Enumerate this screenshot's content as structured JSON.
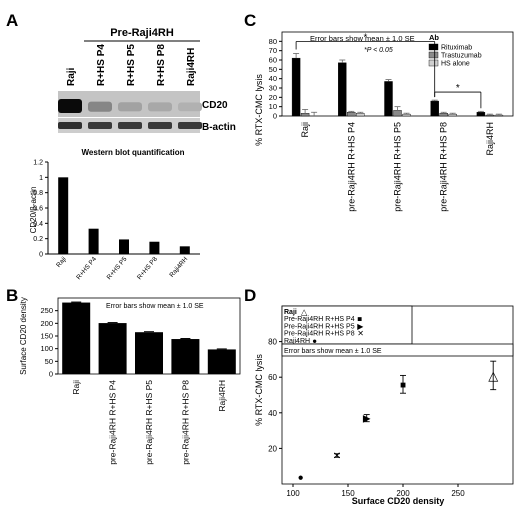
{
  "chart_data": [
    {
      "panel": "A",
      "type": "table",
      "header": "Pre-Raji4RH",
      "lanes": [
        "Raji",
        "R+HS P4",
        "R+HS P5",
        "R+HS P8",
        "Raji4RH"
      ],
      "rows": [
        "CD20",
        "B-actin"
      ],
      "band_intensity": {
        "CD20": [
          1.0,
          0.35,
          0.2,
          0.17,
          0.12
        ],
        "B-actin": [
          0.85,
          0.8,
          0.8,
          0.8,
          0.8
        ]
      }
    },
    {
      "panel": "A-inset",
      "type": "bar",
      "title": "Western blot quantification",
      "ylabel": "CD20/β-actin",
      "categories": [
        "Raji",
        "R+HS P4",
        "R+HS P5",
        "R+HS P8",
        "Raji4RH"
      ],
      "values": [
        1.0,
        0.33,
        0.19,
        0.16,
        0.1
      ],
      "ylim": [
        0,
        1.2
      ],
      "yticks": [
        "0",
        "0.2",
        "0.4",
        "0.6",
        "0.8",
        "1",
        "1.2"
      ],
      "grid": false
    },
    {
      "panel": "B",
      "type": "bar",
      "ylabel": "Surface CD20 density",
      "annotation": "Error bars show mean ± 1.0 SE",
      "categories": [
        "Raji",
        "pre-Raji4RH R+HS P4",
        "pre-Raji4RH R+HS P5",
        "pre-Raji4RH R+HS P8",
        "Raji4RH"
      ],
      "values": [
        282,
        201,
        165,
        138,
        97
      ],
      "errors": [
        2,
        2,
        2,
        2,
        2
      ],
      "ylim": [
        0,
        300
      ],
      "yticks": [
        "0",
        "50",
        "100",
        "150",
        "200",
        "250"
      ],
      "grid": false
    },
    {
      "panel": "C",
      "type": "bar",
      "ylabel": "% RTX-CMC lysis",
      "annotation": "Error bars show mean ± 1.0 SE",
      "significance_note": "*P < 0.05",
      "legend_title": "Ab",
      "legend_position": "top-right",
      "categories": [
        "Raji",
        "pre-Raji4RH R+HS P4",
        "pre-Raji4RH R+HS P5",
        "pre-Raji4RH R+HS P8",
        "Raji4RH"
      ],
      "series": [
        {
          "name": "Rituximab",
          "color": "#000000",
          "values": [
            62,
            57,
            37,
            16,
            4
          ],
          "errors": [
            5,
            3,
            2,
            1,
            1
          ]
        },
        {
          "name": "Trastuzumab",
          "color": "#8a8a8a",
          "values": [
            3,
            4,
            6,
            3,
            1
          ],
          "errors": [
            4,
            1,
            4,
            1,
            1
          ]
        },
        {
          "name": "HS alone",
          "color": "#cfcfcf",
          "values": [
            0,
            3,
            2,
            2,
            1
          ],
          "errors": [
            4,
            1,
            1,
            1,
            1
          ]
        }
      ],
      "significance_marks": [
        "*",
        "*"
      ],
      "ylim": [
        0,
        90
      ],
      "yticks": [
        "0",
        "10",
        "20",
        "30",
        "40",
        "50",
        "60",
        "70",
        "80"
      ],
      "grid": false
    },
    {
      "panel": "D",
      "type": "scatter",
      "xlabel": "Surface CD20 density",
      "ylabel": "% RTX-CMC lysis",
      "annotation": "Error bars show mean ± 1.0 SE",
      "legend_position": "top-left",
      "series": [
        {
          "name": "Raji",
          "marker": "△",
          "x": 282,
          "y": 61,
          "yerr": 8
        },
        {
          "name": "Pre-Raji4RH R+HS P4",
          "marker": "■",
          "x": 200,
          "y": 56,
          "yerr": 5
        },
        {
          "name": "Pre-Raji4RH R+HS P5",
          "marker": "▶",
          "x": 167,
          "y": 37,
          "yerr": 2
        },
        {
          "name": "Pre-Raji4RH R+HS P8",
          "marker": "✕",
          "x": 140,
          "y": 16,
          "yerr": 1
        },
        {
          "name": "Raji4RH",
          "marker": "●",
          "x": 107,
          "y": 4,
          "yerr": 0
        }
      ],
      "xlim": [
        90,
        300
      ],
      "ylim": [
        0,
        100
      ],
      "xticks": [
        "100",
        "150",
        "200",
        "250"
      ],
      "yticks": [
        "20",
        "40",
        "60",
        "80"
      ],
      "grid": false
    }
  ]
}
